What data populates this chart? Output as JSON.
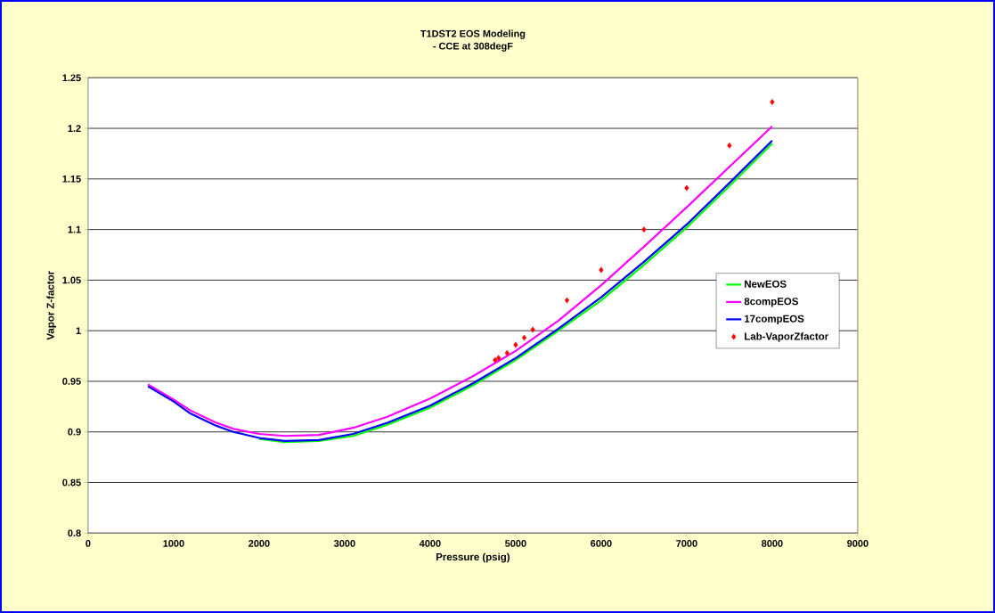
{
  "chart_data": {
    "type": "line",
    "title": "T1DST2 EOS Modeling\n- CCE at 308degF",
    "xlabel": "Pressure (psig)",
    "ylabel": "Vapor Z-factor",
    "xlim": [
      0,
      9000
    ],
    "xticks": [
      0,
      1000,
      2000,
      3000,
      4000,
      5000,
      6000,
      7000,
      8000,
      9000
    ],
    "ylim": [
      0.8,
      1.25
    ],
    "yticks": [
      0.8,
      0.85,
      0.9,
      0.95,
      1,
      1.05,
      1.1,
      1.15,
      1.2,
      1.25
    ],
    "grid": "y",
    "legend": "right",
    "series": [
      {
        "name": "NewEOS",
        "color": "#00ff00",
        "x": [
          2000,
          2300,
          2700,
          3100,
          3500,
          4000,
          4500,
          5000,
          5500,
          6000,
          6500,
          7000,
          7500,
          8000
        ],
        "values": [
          0.893,
          0.89,
          0.891,
          0.896,
          0.907,
          0.924,
          0.946,
          0.971,
          1.0,
          1.03,
          1.065,
          1.102,
          1.143,
          1.185
        ]
      },
      {
        "name": "8compEOS",
        "color": "#ff00ff",
        "x": [
          700,
          1000,
          1200,
          1500,
          1700,
          2000,
          2300,
          2700,
          3100,
          3500,
          4000,
          4500,
          5000,
          5500,
          6000,
          6500,
          7000,
          7500,
          8000
        ],
        "values": [
          0.947,
          0.932,
          0.921,
          0.909,
          0.903,
          0.898,
          0.896,
          0.897,
          0.904,
          0.915,
          0.933,
          0.955,
          0.98,
          1.01,
          1.045,
          1.083,
          1.122,
          1.162,
          1.202
        ]
      },
      {
        "name": "17compEOS",
        "color": "#0000ff",
        "x": [
          700,
          1000,
          1200,
          1500,
          1700,
          2000,
          2300,
          2700,
          3100,
          3500,
          4000,
          4500,
          5000,
          5500,
          6000,
          6500,
          7000,
          7500,
          8000
        ],
        "values": [
          0.945,
          0.93,
          0.918,
          0.906,
          0.9,
          0.894,
          0.891,
          0.892,
          0.898,
          0.909,
          0.926,
          0.948,
          0.973,
          1.002,
          1.033,
          1.068,
          1.105,
          1.146,
          1.188
        ]
      },
      {
        "name": "Lab-VaporZfactor",
        "type": "scatter",
        "marker": "diamond",
        "color": "#ff0000",
        "x": [
          4760,
          4800,
          4900,
          5000,
          5100,
          5200,
          5600,
          6000,
          6500,
          7000,
          7500,
          8000
        ],
        "values": [
          0.971,
          0.973,
          0.978,
          0.986,
          0.993,
          1.001,
          1.03,
          1.06,
          1.1,
          1.141,
          1.183,
          1.226
        ]
      }
    ]
  }
}
